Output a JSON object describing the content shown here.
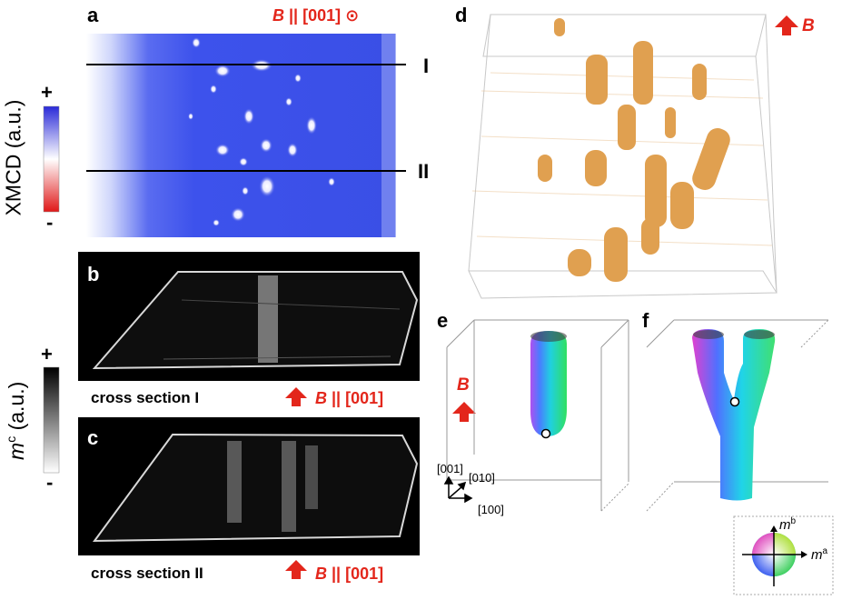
{
  "panels": {
    "a": {
      "label": "a",
      "field": "|| [001]",
      "field_symbol": "B",
      "field_suffix": "⊙",
      "line_labels": [
        "I",
        "II"
      ]
    },
    "b": {
      "label": "b",
      "caption": "cross section I",
      "field": "|| [001]",
      "field_symbol": "B"
    },
    "c": {
      "label": "c",
      "caption": "cross section II",
      "field": "|| [001]",
      "field_symbol": "B"
    },
    "d": {
      "label": "d",
      "field_symbol": "B"
    },
    "e": {
      "label": "e",
      "field_symbol": "B",
      "axes": {
        "z": "[001]",
        "y": "[010]",
        "x": "[100]"
      }
    },
    "f": {
      "label": "f"
    }
  },
  "colorbars": {
    "xmcd": {
      "title": "XMCD (a.u.)",
      "plus": "+",
      "minus": "-"
    },
    "mc": {
      "title_italic": "m",
      "title_sup": "c",
      "title_rest": " (a.u.)",
      "plus": "+",
      "minus": "-"
    }
  },
  "color_wheel": {
    "mb_italic": "m",
    "mb_sup": "b",
    "ma_italic": "m",
    "ma_sup": "a"
  },
  "colors": {
    "field_red": "#e3261b",
    "xmcd_blue": "#3a4fe6",
    "domain_orange": "#e0a050"
  }
}
